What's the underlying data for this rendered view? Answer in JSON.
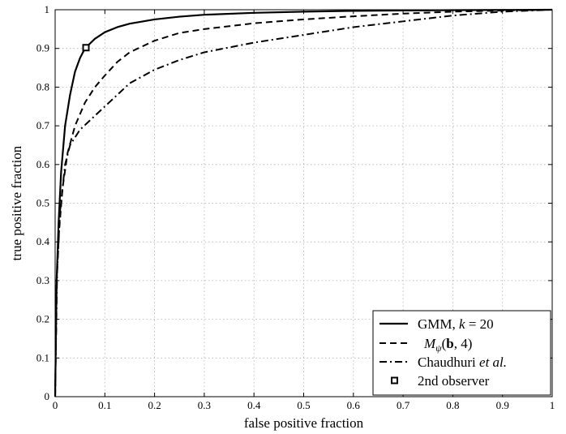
{
  "chart_data": {
    "type": "line",
    "xlabel": "false positive fraction",
    "ylabel": "true positive fraction",
    "xlim": [
      0,
      1
    ],
    "ylim": [
      0,
      1
    ],
    "grid": true,
    "legend_position": "bottom-right",
    "x_ticks": [
      "0",
      "0.1",
      "0.2",
      "0.3",
      "0.4",
      "0.5",
      "0.6",
      "0.7",
      "0.8",
      "0.9",
      "1"
    ],
    "y_ticks": [
      "0",
      "0.1",
      "0.2",
      "0.3",
      "0.4",
      "0.5",
      "0.6",
      "0.7",
      "0.8",
      "0.9",
      "1"
    ],
    "series": [
      {
        "name": "GMM, k = 20",
        "name_parts": [
          "GMM, ",
          "k",
          " = 20"
        ],
        "style": "solid",
        "x": [
          0,
          0.003,
          0.007,
          0.012,
          0.02,
          0.03,
          0.04,
          0.05,
          0.06,
          0.08,
          0.1,
          0.125,
          0.15,
          0.2,
          0.25,
          0.3,
          0.4,
          0.5,
          0.6,
          0.7,
          0.8,
          0.9,
          1.0
        ],
        "y": [
          0,
          0.3,
          0.45,
          0.58,
          0.7,
          0.78,
          0.84,
          0.875,
          0.9,
          0.925,
          0.942,
          0.955,
          0.964,
          0.975,
          0.982,
          0.987,
          0.992,
          0.995,
          0.997,
          0.998,
          0.999,
          0.9995,
          1.0
        ]
      },
      {
        "name": "Mψ(b, 4)",
        "name_parts": [
          "M",
          "ψ",
          "(",
          "b",
          ", 4)"
        ],
        "style": "dashed",
        "x": [
          0,
          0.003,
          0.008,
          0.015,
          0.025,
          0.04,
          0.06,
          0.08,
          0.1,
          0.125,
          0.15,
          0.2,
          0.25,
          0.3,
          0.4,
          0.5,
          0.6,
          0.7,
          0.8,
          0.9,
          1.0
        ],
        "y": [
          0,
          0.3,
          0.43,
          0.54,
          0.63,
          0.7,
          0.76,
          0.8,
          0.83,
          0.865,
          0.89,
          0.92,
          0.94,
          0.95,
          0.965,
          0.975,
          0.983,
          0.99,
          0.995,
          0.998,
          1.0
        ]
      },
      {
        "name": "Chaudhuri et al.",
        "name_parts": [
          "Chaudhuri ",
          "et al."
        ],
        "style": "dashdot",
        "x": [
          0,
          0.004,
          0.01,
          0.02,
          0.03,
          0.05,
          0.075,
          0.1,
          0.15,
          0.2,
          0.25,
          0.3,
          0.4,
          0.5,
          0.6,
          0.7,
          0.8,
          0.9,
          1.0
        ],
        "y": [
          0,
          0.32,
          0.48,
          0.6,
          0.65,
          0.69,
          0.72,
          0.75,
          0.81,
          0.845,
          0.87,
          0.89,
          0.915,
          0.935,
          0.955,
          0.97,
          0.985,
          0.995,
          1.0
        ]
      },
      {
        "name": "2nd observer",
        "style": "marker",
        "x": [
          0.062
        ],
        "y": [
          0.902
        ]
      }
    ]
  }
}
